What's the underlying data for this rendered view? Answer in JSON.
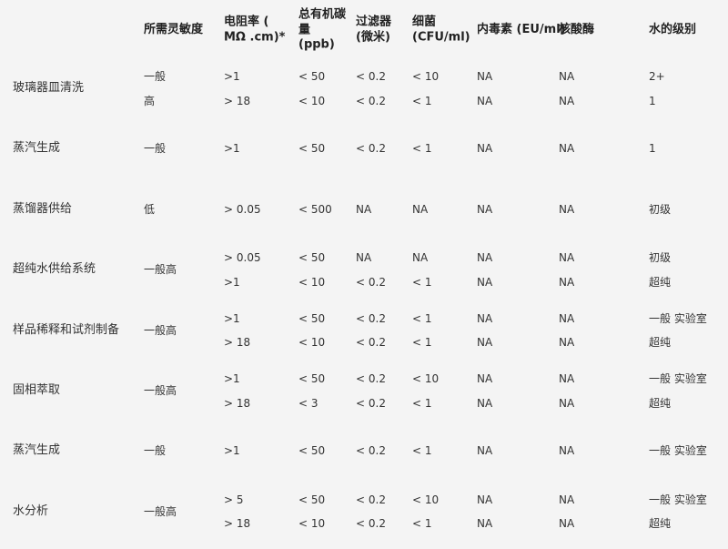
{
  "colors": {
    "background": "#f4f4f4",
    "text": "#333333"
  },
  "headers": [
    {
      "key": "sensitivity",
      "lines": [
        "所需灵敏度"
      ]
    },
    {
      "key": "resistivity",
      "lines": [
        "电阻率 (",
        "MΩ .cm)*"
      ]
    },
    {
      "key": "toc",
      "lines": [
        "总有机碳",
        "量",
        "(ppb)"
      ]
    },
    {
      "key": "filter",
      "lines": [
        "过滤器",
        "(微米)"
      ]
    },
    {
      "key": "bacteria",
      "lines": [
        "细菌",
        "(CFU/ml)"
      ]
    },
    {
      "key": "endotoxin",
      "lines": [
        "内毒素 (EU/ml)"
      ]
    },
    {
      "key": "nuclease",
      "lines": [
        "核酸酶"
      ]
    },
    {
      "key": "grade",
      "lines": [
        "水的级别"
      ]
    }
  ],
  "rows": [
    {
      "application": "玻璃器皿清洗",
      "subrows": [
        {
          "sensitivity": "一般",
          "resistivity": ">1",
          "toc": "< 50",
          "filter": "< 0.2",
          "bacteria": "< 10",
          "endotoxin": "NA",
          "nuclease": "NA",
          "grade": "2+"
        },
        {
          "sensitivity": "高",
          "resistivity": "> 18",
          "toc": "< 10",
          "filter": "< 0.2",
          "bacteria": "< 1",
          "endotoxin": "NA",
          "nuclease": "NA",
          "grade": "1"
        }
      ]
    },
    {
      "application": "蒸汽生成",
      "subrows": [
        {
          "sensitivity": "一般",
          "resistivity": ">1",
          "toc": "< 50",
          "filter": "< 0.2",
          "bacteria": "< 1",
          "endotoxin": "NA",
          "nuclease": "NA",
          "grade": "1"
        }
      ]
    },
    {
      "application": "蒸馏器供给",
      "subrows": [
        {
          "sensitivity": "低",
          "resistivity": "> 0.05",
          "toc": "< 500",
          "filter": "NA",
          "bacteria": "NA",
          "endotoxin": "NA",
          "nuclease": "NA",
          "grade": "初级"
        }
      ]
    },
    {
      "application": "超纯水供给系统",
      "sensitivity": "一般高",
      "subrows": [
        {
          "resistivity": "> 0.05",
          "toc": "< 50",
          "filter": "NA",
          "bacteria": "NA",
          "endotoxin": "NA",
          "nuclease": "NA",
          "grade": "初级"
        },
        {
          "resistivity": ">1",
          "toc": "< 10",
          "filter": "< 0.2",
          "bacteria": "< 1",
          "endotoxin": "NA",
          "nuclease": "NA",
          "grade": "超纯"
        }
      ]
    },
    {
      "application": "样品稀释和试剂制备",
      "sensitivity": "一般高",
      "subrows": [
        {
          "resistivity": ">1",
          "toc": "< 50",
          "filter": "< 0.2",
          "bacteria": "< 1",
          "endotoxin": "NA",
          "nuclease": "NA",
          "grade": "一般 实验室"
        },
        {
          "resistivity": "> 18",
          "toc": "< 10",
          "filter": "< 0.2",
          "bacteria": "< 1",
          "endotoxin": "NA",
          "nuclease": "NA",
          "grade": "超纯"
        }
      ]
    },
    {
      "application": "固相萃取",
      "sensitivity": "一般高",
      "subrows": [
        {
          "resistivity": ">1",
          "toc": "< 50",
          "filter": "< 0.2",
          "bacteria": "< 10",
          "endotoxin": "NA",
          "nuclease": "NA",
          "grade": "一般 实验室"
        },
        {
          "resistivity": "> 18",
          "toc": "< 3",
          "filter": "< 0.2",
          "bacteria": "< 1",
          "endotoxin": "NA",
          "nuclease": "NA",
          "grade": "超纯"
        }
      ]
    },
    {
      "application": "蒸汽生成",
      "subrows": [
        {
          "sensitivity": "一般",
          "resistivity": ">1",
          "toc": "< 50",
          "filter": "< 0.2",
          "bacteria": "< 1",
          "endotoxin": "NA",
          "nuclease": "NA",
          "grade": "一般 实验室"
        }
      ]
    },
    {
      "application": "水分析",
      "sensitivity": "一般高",
      "subrows": [
        {
          "resistivity": "> 5",
          "toc": "< 50",
          "filter": "< 0.2",
          "bacteria": "< 10",
          "endotoxin": "NA",
          "nuclease": "NA",
          "grade": "一般 实验室"
        },
        {
          "resistivity": "> 18",
          "toc": "< 10",
          "filter": "< 0.2",
          "bacteria": "< 1",
          "endotoxin": "NA",
          "nuclease": "NA",
          "grade": "超纯"
        }
      ]
    }
  ]
}
